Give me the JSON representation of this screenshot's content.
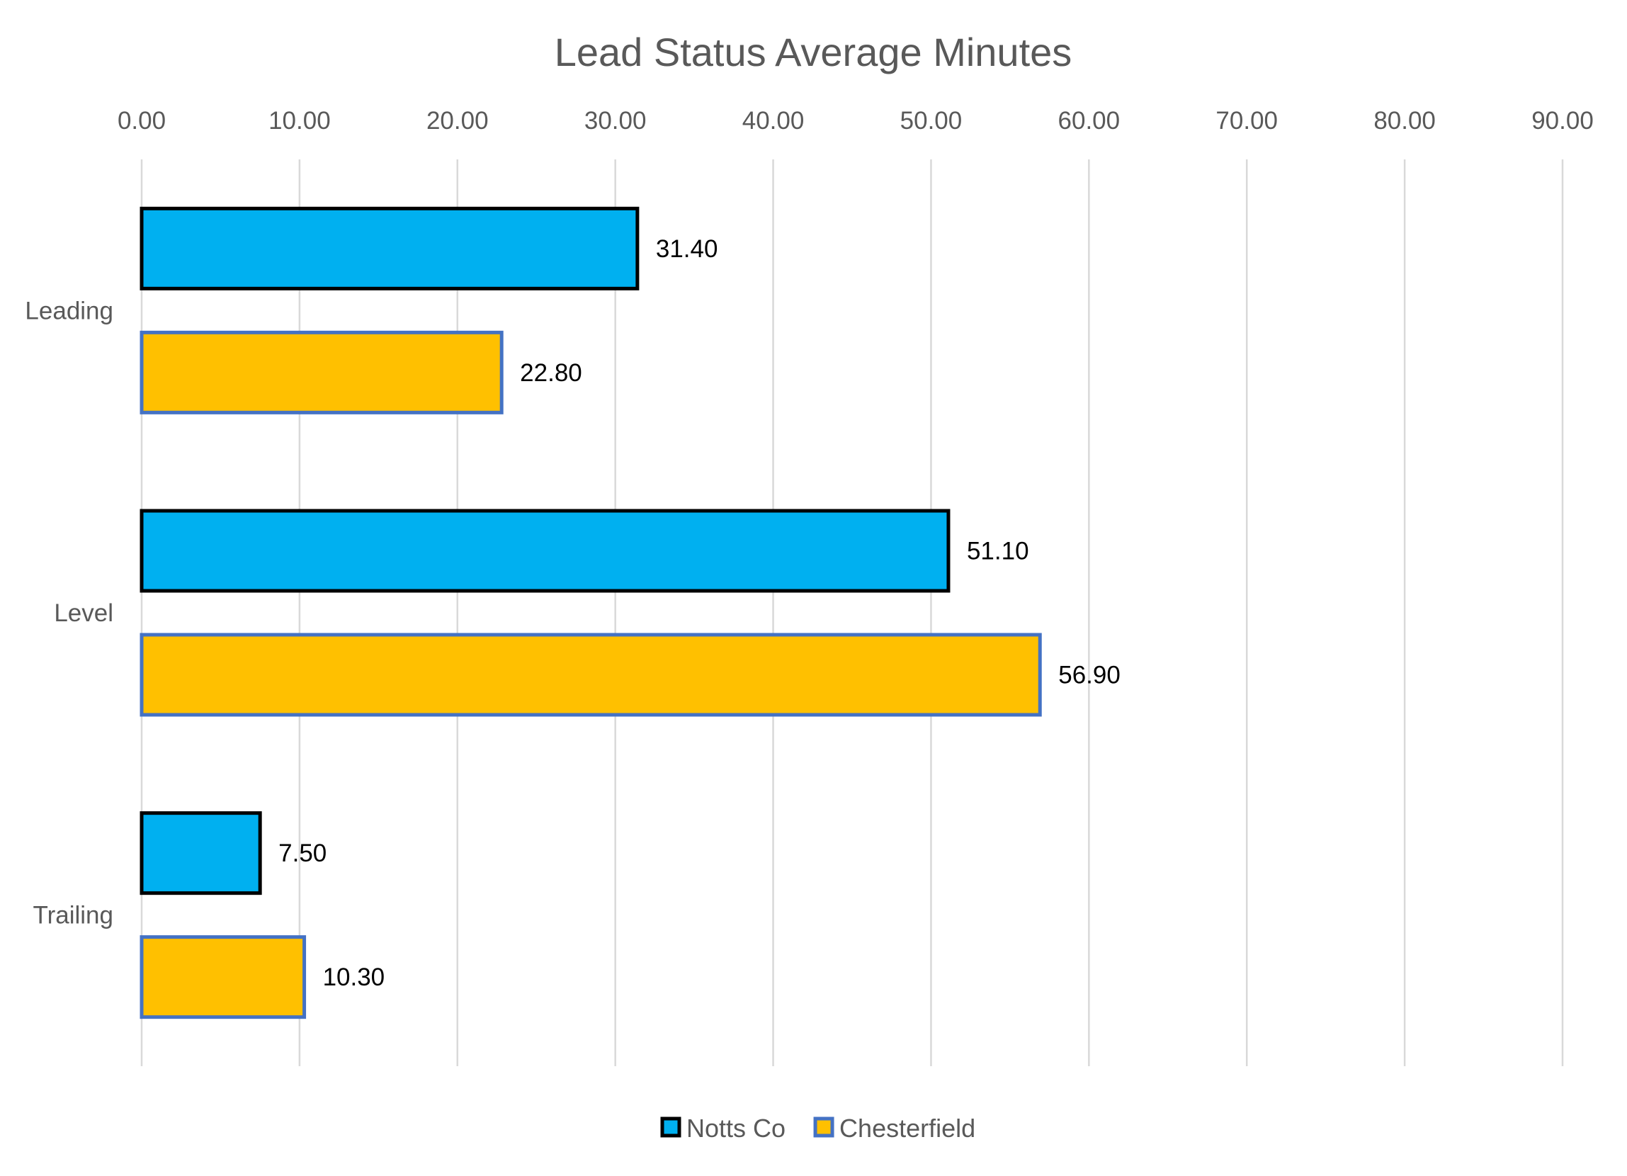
{
  "chart_data": {
    "type": "bar",
    "orientation": "horizontal",
    "title": "Lead Status Average Minutes",
    "xlabel": "",
    "ylabel": "",
    "categories": [
      "Leading",
      "Level",
      "Trailing"
    ],
    "series": [
      {
        "name": "Notts Co",
        "values": [
          31.4,
          51.1,
          7.5
        ],
        "labels": [
          "31.40",
          "51.10",
          "7.50"
        ],
        "fill": "#00B0F0",
        "stroke": "#000000"
      },
      {
        "name": "Chesterfield",
        "values": [
          22.8,
          56.9,
          10.3
        ],
        "labels": [
          "22.80",
          "56.90",
          "10.30"
        ],
        "fill": "#FFC000",
        "stroke": "#4472C4"
      }
    ],
    "xlim": [
      0,
      90
    ],
    "ticks": [
      "0.00",
      "10.00",
      "20.00",
      "30.00",
      "40.00",
      "50.00",
      "60.00",
      "70.00",
      "80.00",
      "90.00"
    ],
    "x_axis_position": "top",
    "grid": true,
    "legend_position": "bottom"
  }
}
